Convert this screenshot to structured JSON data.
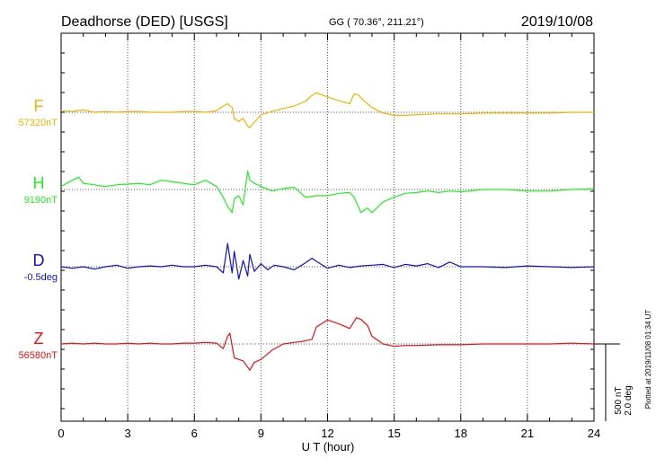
{
  "header": {
    "station": "Deadhorse (DED)  [USGS]",
    "coords": "GG ( 70.36°, 211.21°)",
    "date": "2019/10/08"
  },
  "axis": {
    "xlabel": "U T (hour)",
    "xticks": [
      "0",
      "3",
      "6",
      "9",
      "12",
      "15",
      "18",
      "21",
      "24"
    ],
    "xlim": [
      0,
      24
    ]
  },
  "scale_bar": {
    "nt": "500 nT",
    "deg": "2.0 deg"
  },
  "plotted_note": "Plotted at 2019/11/08 01:34 UT",
  "colors": {
    "F": "#f0b400",
    "H": "#22ee22",
    "D": "#1010cc",
    "Z": "#ee1111",
    "grid": "#555555"
  },
  "chart_data": {
    "type": "line",
    "title": "Deadhorse (DED)  [USGS]",
    "xlabel": "U T (hour)",
    "xlim": [
      0,
      24
    ],
    "grid": true,
    "series": [
      {
        "name": "F",
        "baseline_label": "57320nT",
        "color": "#f0b400",
        "x": [
          0,
          0.5,
          1,
          1.5,
          2,
          2.5,
          3,
          3.5,
          4,
          4.5,
          5,
          5.5,
          6,
          6.5,
          7,
          7.3,
          7.5,
          7.7,
          7.8,
          8,
          8.2,
          8.4,
          8.5,
          8.6,
          8.8,
          9,
          9.5,
          10,
          10.5,
          11,
          11.3,
          11.5,
          11.8,
          12,
          12.5,
          13,
          13.2,
          13.4,
          13.6,
          14,
          14.5,
          15,
          15.5,
          16,
          17,
          18,
          19,
          20,
          21,
          22,
          23,
          24
        ],
        "y": [
          10,
          5,
          15,
          0,
          5,
          0,
          5,
          5,
          0,
          0,
          0,
          5,
          5,
          0,
          10,
          40,
          55,
          30,
          -40,
          -60,
          -40,
          -90,
          -100,
          -80,
          -50,
          -15,
          5,
          25,
          40,
          70,
          110,
          125,
          110,
          100,
          75,
          55,
          120,
          110,
          80,
          30,
          -5,
          -20,
          -20,
          -15,
          -10,
          -10,
          -5,
          -5,
          -5,
          -5,
          0,
          0
        ]
      },
      {
        "name": "H",
        "baseline_label": "9190nT",
        "color": "#22ee22",
        "x": [
          0,
          0.5,
          0.8,
          1,
          1.5,
          2,
          2.5,
          3,
          3.5,
          4,
          4.5,
          5,
          5.5,
          6,
          6.5,
          7,
          7.3,
          7.5,
          7.7,
          7.8,
          8,
          8.2,
          8.4,
          8.5,
          8.7,
          9,
          9.5,
          10,
          10.5,
          11,
          11.5,
          12,
          12.5,
          13,
          13.2,
          13.5,
          13.8,
          14,
          14.5,
          15,
          15.5,
          16,
          16.5,
          17,
          17.5,
          18,
          19,
          20,
          21,
          22,
          23,
          24
        ],
        "y": [
          20,
          60,
          80,
          40,
          30,
          20,
          30,
          35,
          40,
          30,
          60,
          50,
          40,
          30,
          60,
          20,
          -50,
          -110,
          -150,
          -60,
          -40,
          -100,
          120,
          60,
          40,
          20,
          -10,
          5,
          15,
          -50,
          -40,
          -40,
          -25,
          -20,
          -50,
          -150,
          -120,
          -150,
          -80,
          -50,
          -25,
          -20,
          -10,
          -20,
          -10,
          -15,
          0,
          0,
          -10,
          -10,
          0,
          5
        ]
      },
      {
        "name": "D",
        "baseline_label": "-0.5deg",
        "color": "#1010cc",
        "x": [
          0,
          0.5,
          1,
          1.5,
          2,
          2.5,
          3,
          3.5,
          4,
          4.5,
          5,
          5.5,
          6,
          6.5,
          7,
          7.3,
          7.5,
          7.7,
          7.8,
          8,
          8.2,
          8.4,
          8.5,
          8.7,
          9,
          9.3,
          9.6,
          10,
          10.5,
          11,
          11.3,
          11.5,
          12,
          12.5,
          13,
          13.5,
          14,
          14.5,
          15,
          15.5,
          16,
          16.5,
          17,
          17.5,
          18,
          19,
          20,
          21,
          22,
          23,
          24
        ],
        "y": [
          0,
          -10,
          0,
          -15,
          0,
          10,
          -10,
          0,
          5,
          0,
          10,
          0,
          0,
          10,
          0,
          -40,
          150,
          -40,
          100,
          -80,
          40,
          -60,
          80,
          -30,
          20,
          -20,
          10,
          0,
          -20,
          25,
          55,
          35,
          -10,
          10,
          -5,
          5,
          10,
          15,
          -5,
          15,
          5,
          20,
          -5,
          30,
          0,
          0,
          -5,
          5,
          0,
          -5,
          0
        ]
      },
      {
        "name": "Z",
        "baseline_label": "56580nT",
        "color": "#ee1111",
        "x": [
          0,
          0.5,
          1,
          1.5,
          2,
          2.5,
          3,
          3.5,
          4,
          4.5,
          5,
          5.5,
          6,
          6.5,
          7,
          7.3,
          7.5,
          7.6,
          7.8,
          8,
          8.2,
          8.4,
          8.5,
          8.7,
          9,
          9.5,
          10,
          10.5,
          11,
          11.3,
          11.5,
          12,
          12.5,
          13,
          13.3,
          13.5,
          13.8,
          14,
          14.5,
          15,
          15.5,
          16,
          17,
          18,
          19,
          20,
          21,
          22,
          23,
          24
        ],
        "y": [
          0,
          5,
          0,
          5,
          0,
          0,
          5,
          0,
          5,
          0,
          0,
          5,
          5,
          10,
          5,
          -30,
          50,
          70,
          -90,
          -100,
          -110,
          -150,
          -170,
          -120,
          -100,
          -40,
          0,
          10,
          20,
          30,
          110,
          155,
          130,
          100,
          170,
          160,
          120,
          50,
          0,
          -15,
          -10,
          -10,
          -5,
          -5,
          0,
          0,
          0,
          0,
          5,
          0
        ]
      }
    ],
    "scale_bar": {
      "nt_per_bar": 500,
      "deg_per_bar": 2.0
    }
  }
}
